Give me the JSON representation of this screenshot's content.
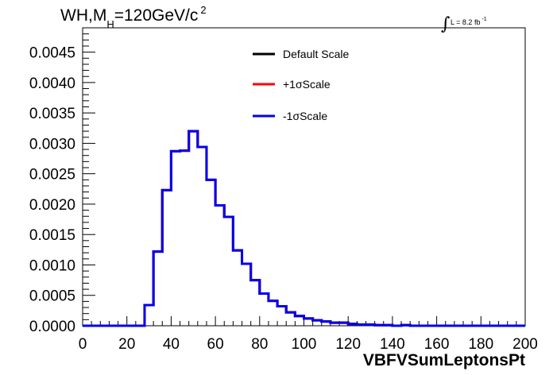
{
  "chart_data": {
    "type": "line",
    "title_main": "WH,M",
    "title_sub": "H",
    "title_rest": "=120GeV/c",
    "title_sup": "2",
    "lumi_label": "L = 8.2 fb",
    "lumi_sup": "-1",
    "xlabel": "VBFVSumLeptonsPt",
    "ylabel": "",
    "xlim": [
      0,
      200
    ],
    "ylim": [
      0,
      0.0049
    ],
    "x_ticks": [
      "0",
      "20",
      "40",
      "60",
      "80",
      "100",
      "120",
      "140",
      "160",
      "180",
      "200"
    ],
    "y_ticks": [
      "0.0000",
      "0.0005",
      "0.0010",
      "0.0015",
      "0.0020",
      "0.0025",
      "0.0030",
      "0.0035",
      "0.0040",
      "0.0045"
    ],
    "bin_edges": [
      0,
      4,
      8,
      12,
      16,
      20,
      24,
      28,
      32,
      36,
      40,
      44,
      48,
      52,
      56,
      60,
      64,
      68,
      72,
      76,
      80,
      84,
      88,
      92,
      96,
      100,
      104,
      108,
      112,
      116,
      120,
      124,
      128,
      132,
      136,
      140,
      144,
      148,
      152,
      156,
      160,
      164,
      168,
      172,
      176,
      180,
      184,
      188,
      192,
      196,
      200
    ],
    "series": [
      {
        "name": "Default Scale",
        "color": "#000000",
        "values": [
          0,
          0,
          0,
          0,
          0,
          0,
          0,
          0.00034,
          0.00122,
          0.00223,
          0.00287,
          0.00288,
          0.0032,
          0.00294,
          0.0024,
          0.00198,
          0.00179,
          0.00124,
          0.00102,
          0.00075,
          0.00053,
          0.00041,
          0.00032,
          0.00022,
          0.00016,
          0.00012,
          9e-05,
          7e-05,
          5e-05,
          5e-05,
          3e-05,
          2e-05,
          2e-05,
          1e-05,
          1e-05,
          0,
          1e-05,
          0,
          0,
          0,
          0,
          0,
          0,
          0,
          0,
          0,
          0,
          0,
          0,
          0
        ]
      },
      {
        "name": "+1σScale",
        "color": "#ff0000",
        "values": [
          0,
          0,
          0,
          0,
          0,
          0,
          0,
          0.00034,
          0.00122,
          0.00223,
          0.00287,
          0.00288,
          0.0032,
          0.00294,
          0.0024,
          0.00198,
          0.00179,
          0.00124,
          0.00102,
          0.00075,
          0.00053,
          0.00041,
          0.00032,
          0.00022,
          0.00016,
          0.00012,
          9e-05,
          7e-05,
          5e-05,
          5e-05,
          3e-05,
          2e-05,
          2e-05,
          1e-05,
          1e-05,
          0,
          1e-05,
          0,
          0,
          0,
          0,
          0,
          0,
          0,
          0,
          0,
          0,
          0,
          0,
          0
        ]
      },
      {
        "name": "-1σScale",
        "color": "#0000ee",
        "values": [
          0,
          0,
          0,
          0,
          0,
          0,
          0,
          0.00034,
          0.00122,
          0.00223,
          0.00287,
          0.00288,
          0.0032,
          0.00294,
          0.0024,
          0.00198,
          0.00179,
          0.00124,
          0.00102,
          0.00075,
          0.00053,
          0.00041,
          0.00032,
          0.00022,
          0.00016,
          0.00012,
          9e-05,
          7e-05,
          5e-05,
          5e-05,
          3e-05,
          2e-05,
          2e-05,
          1e-05,
          1e-05,
          0,
          1e-05,
          0,
          0,
          0,
          0,
          0,
          0,
          0,
          0,
          0,
          0,
          0,
          0,
          0
        ]
      }
    ],
    "legend_position": "top-center",
    "grid": false
  }
}
